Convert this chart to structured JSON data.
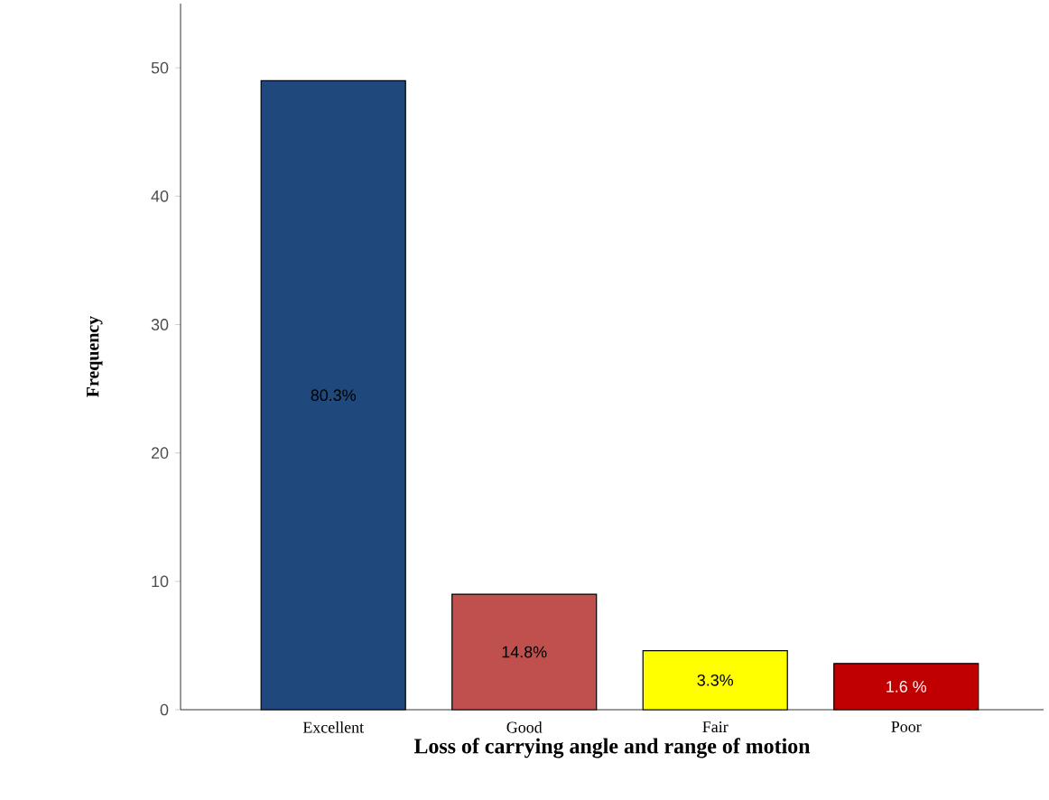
{
  "chart_data": {
    "type": "bar",
    "xlabel": "Loss of carrying angle and range of motion",
    "ylabel": "Frequency",
    "categories": [
      "Excellent",
      "Good",
      "Fair",
      "Poor"
    ],
    "values": [
      49,
      9,
      4.6,
      3.6
    ],
    "colors": [
      "#1f497d",
      "#c0504d",
      "#ffff00",
      "#c00000"
    ],
    "annotations": [
      "80.3%",
      "14.8%",
      "3.3%",
      "1.6 %"
    ],
    "ylim": [
      0,
      55
    ],
    "yticks": [
      0,
      10,
      20,
      30,
      40,
      50
    ],
    "grid": false
  }
}
